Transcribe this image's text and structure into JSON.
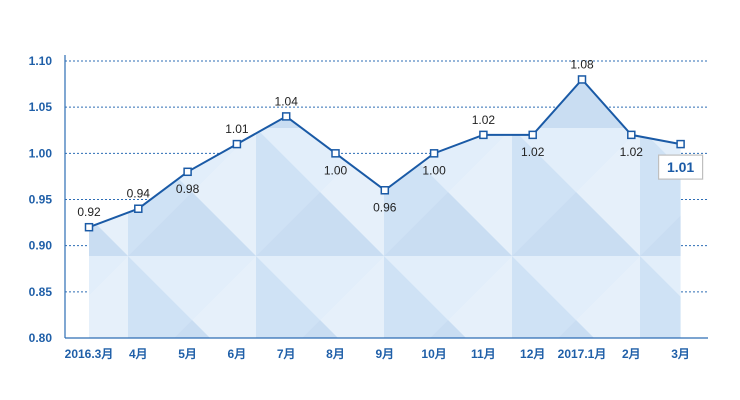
{
  "chart_data": {
    "type": "line",
    "categories": [
      "2016.3月",
      "4月",
      "5月",
      "6月",
      "7月",
      "8月",
      "9月",
      "10月",
      "11月",
      "12月",
      "2017.1月",
      "2月",
      "3月"
    ],
    "values": [
      0.92,
      0.94,
      0.98,
      1.01,
      1.04,
      1.0,
      0.96,
      1.0,
      1.02,
      1.02,
      1.08,
      1.02,
      1.01
    ],
    "value_labels": [
      "0.92",
      "0.94",
      "0.98",
      "1.01",
      "1.04",
      "1.00",
      "0.96",
      "1.00",
      "1.02",
      "1.02",
      "1.08",
      "1.02",
      "1.01"
    ],
    "ylim": [
      0.8,
      1.1
    ],
    "yticks": [
      "0.80",
      "0.85",
      "0.90",
      "0.95",
      "1.00",
      "1.05",
      "1.10"
    ],
    "grid": true,
    "callout": "1.01",
    "colors": {
      "line": "#1a5aa6",
      "axis_text": "#1f5fa8",
      "area": "#d6e8f7"
    }
  }
}
